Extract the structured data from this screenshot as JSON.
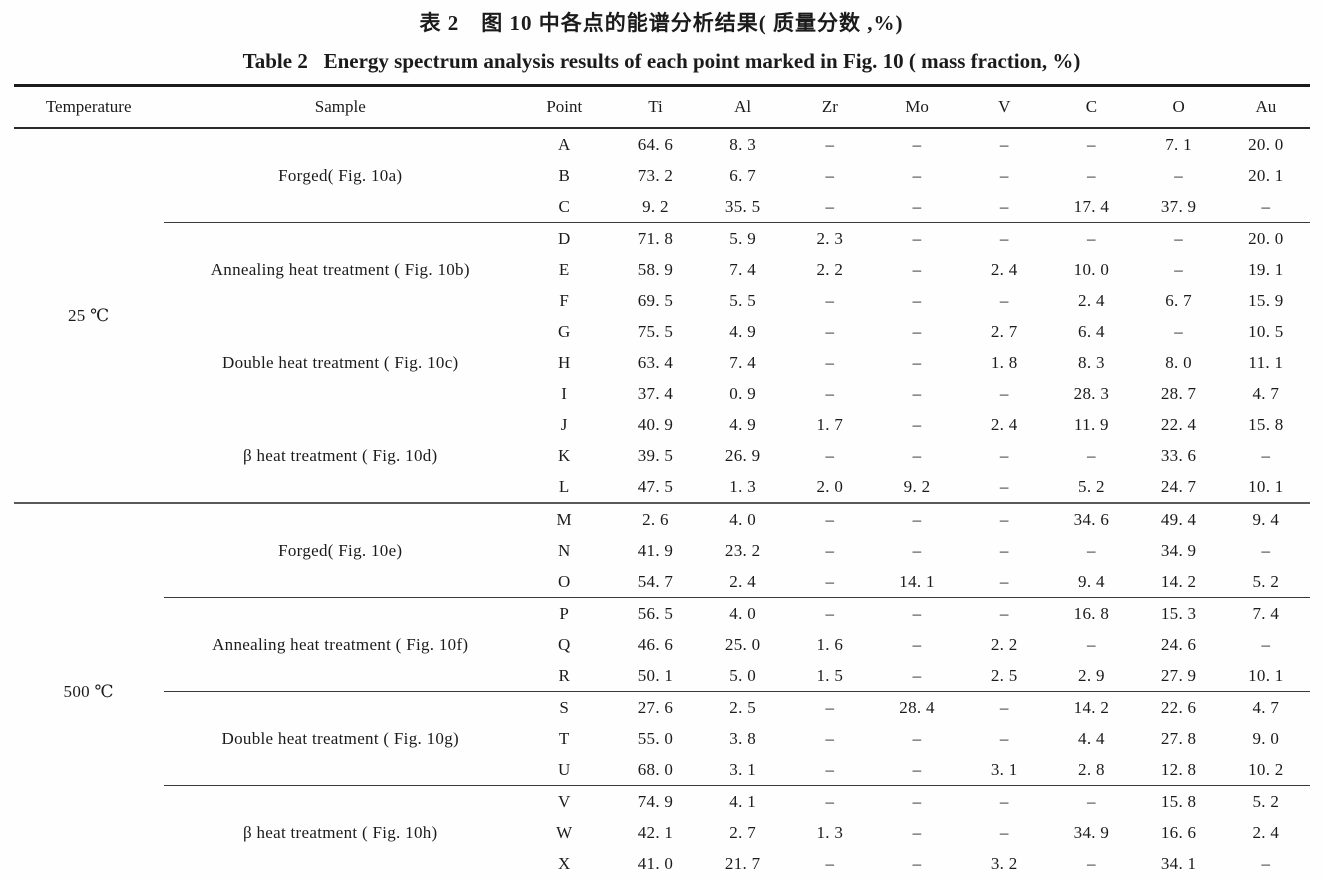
{
  "titles": {
    "chinese": "表 2　图 10 中各点的能谱分析结果( 质量分数 ,%)",
    "english": "Table 2   Energy spectrum analysis results of each point marked in Fig. 10 ( mass fraction, %)"
  },
  "colors": {
    "background": "#fefefe",
    "text": "#1b1b1b",
    "rule_heavy": "#1c1c1c",
    "rule_light": "#3a3a3a"
  },
  "chart_data": {
    "type": "table",
    "title": "Table 2  Energy spectrum analysis results of each point marked in Fig. 10 ( mass fraction, %)",
    "columns": [
      "Temperature",
      "Sample",
      "Point",
      "Ti",
      "Al",
      "Zr",
      "Mo",
      "V",
      "C",
      "O",
      "Au"
    ],
    "sections": [
      {
        "temperature": "25 ℃",
        "groups": [
          {
            "sample": "Forged( Fig. 10a)",
            "divider_before": false,
            "rows": [
              {
                "point": "A",
                "values": [
                  "64. 6",
                  "8. 3",
                  "–",
                  "–",
                  "–",
                  "–",
                  "7. 1",
                  "20. 0"
                ]
              },
              {
                "point": "B",
                "values": [
                  "73. 2",
                  "6. 7",
                  "–",
                  "–",
                  "–",
                  "–",
                  "–",
                  "20. 1"
                ]
              },
              {
                "point": "C",
                "values": [
                  "9. 2",
                  "35. 5",
                  "–",
                  "–",
                  "–",
                  "17. 4",
                  "37. 9",
                  "–"
                ]
              }
            ]
          },
          {
            "sample": "Annealing heat treatment ( Fig. 10b)",
            "divider_before": true,
            "rows": [
              {
                "point": "D",
                "values": [
                  "71. 8",
                  "5. 9",
                  "2. 3",
                  "–",
                  "–",
                  "–",
                  "–",
                  "20. 0"
                ]
              },
              {
                "point": "E",
                "values": [
                  "58. 9",
                  "7. 4",
                  "2. 2",
                  "–",
                  "2. 4",
                  "10. 0",
                  "–",
                  "19. 1"
                ]
              },
              {
                "point": "F",
                "values": [
                  "69. 5",
                  "5. 5",
                  "–",
                  "–",
                  "–",
                  "2. 4",
                  "6. 7",
                  "15. 9"
                ]
              }
            ]
          },
          {
            "sample": "Double heat treatment ( Fig. 10c)",
            "divider_before": false,
            "rows": [
              {
                "point": "G",
                "values": [
                  "75. 5",
                  "4. 9",
                  "–",
                  "–",
                  "2. 7",
                  "6. 4",
                  "–",
                  "10. 5"
                ]
              },
              {
                "point": "H",
                "values": [
                  "63. 4",
                  "7. 4",
                  "–",
                  "–",
                  "1. 8",
                  "8. 3",
                  "8. 0",
                  "11. 1"
                ]
              },
              {
                "point": "I",
                "values": [
                  "37. 4",
                  "0. 9",
                  "–",
                  "–",
                  "–",
                  "28. 3",
                  "28. 7",
                  "4. 7"
                ]
              }
            ]
          },
          {
            "sample": "β heat treatment ( Fig. 10d)",
            "divider_before": false,
            "rows": [
              {
                "point": "J",
                "values": [
                  "40. 9",
                  "4. 9",
                  "1. 7",
                  "–",
                  "2. 4",
                  "11. 9",
                  "22. 4",
                  "15. 8"
                ]
              },
              {
                "point": "K",
                "values": [
                  "39. 5",
                  "26. 9",
                  "–",
                  "–",
                  "–",
                  "–",
                  "33. 6",
                  "–"
                ]
              },
              {
                "point": "L",
                "values": [
                  "47. 5",
                  "1. 3",
                  "2. 0",
                  "9. 2",
                  "–",
                  "5. 2",
                  "24. 7",
                  "10. 1"
                ]
              }
            ]
          }
        ]
      },
      {
        "temperature": "500 ℃",
        "groups": [
          {
            "sample": "Forged( Fig. 10e)",
            "divider_before": false,
            "rows": [
              {
                "point": "M",
                "values": [
                  "2. 6",
                  "4. 0",
                  "–",
                  "–",
                  "–",
                  "34. 6",
                  "49. 4",
                  "9. 4"
                ]
              },
              {
                "point": "N",
                "values": [
                  "41. 9",
                  "23. 2",
                  "–",
                  "–",
                  "–",
                  "–",
                  "34. 9",
                  "–"
                ]
              },
              {
                "point": "O",
                "values": [
                  "54. 7",
                  "2. 4",
                  "–",
                  "14. 1",
                  "–",
                  "9. 4",
                  "14. 2",
                  "5. 2"
                ]
              }
            ]
          },
          {
            "sample": "Annealing heat treatment ( Fig. 10f)",
            "divider_before": true,
            "rows": [
              {
                "point": "P",
                "values": [
                  "56. 5",
                  "4. 0",
                  "–",
                  "–",
                  "–",
                  "16. 8",
                  "15. 3",
                  "7. 4"
                ]
              },
              {
                "point": "Q",
                "values": [
                  "46. 6",
                  "25. 0",
                  "1. 6",
                  "–",
                  "2. 2",
                  "–",
                  "24. 6",
                  "–"
                ]
              },
              {
                "point": "R",
                "values": [
                  "50. 1",
                  "5. 0",
                  "1. 5",
                  "–",
                  "2. 5",
                  "2. 9",
                  "27. 9",
                  "10. 1"
                ]
              }
            ]
          },
          {
            "sample": "Double heat treatment ( Fig. 10g)",
            "divider_before": true,
            "rows": [
              {
                "point": "S",
                "values": [
                  "27. 6",
                  "2. 5",
                  "–",
                  "28. 4",
                  "–",
                  "14. 2",
                  "22. 6",
                  "4. 7"
                ]
              },
              {
                "point": "T",
                "values": [
                  "55. 0",
                  "3. 8",
                  "–",
                  "–",
                  "–",
                  "4. 4",
                  "27. 8",
                  "9. 0"
                ]
              },
              {
                "point": "U",
                "values": [
                  "68. 0",
                  "3. 1",
                  "–",
                  "–",
                  "3. 1",
                  "2. 8",
                  "12. 8",
                  "10. 2"
                ]
              }
            ]
          },
          {
            "sample": "β heat treatment ( Fig. 10h)",
            "divider_before": true,
            "rows": [
              {
                "point": "V",
                "values": [
                  "74. 9",
                  "4. 1",
                  "–",
                  "–",
                  "–",
                  "–",
                  "15. 8",
                  "5. 2"
                ]
              },
              {
                "point": "W",
                "values": [
                  "42. 1",
                  "2. 7",
                  "1. 3",
                  "–",
                  "–",
                  "34. 9",
                  "16. 6",
                  "2. 4"
                ]
              },
              {
                "point": "X",
                "values": [
                  "41. 0",
                  "21. 7",
                  "–",
                  "–",
                  "3. 2",
                  "–",
                  "34. 1",
                  "–"
                ]
              }
            ]
          }
        ]
      }
    ]
  }
}
